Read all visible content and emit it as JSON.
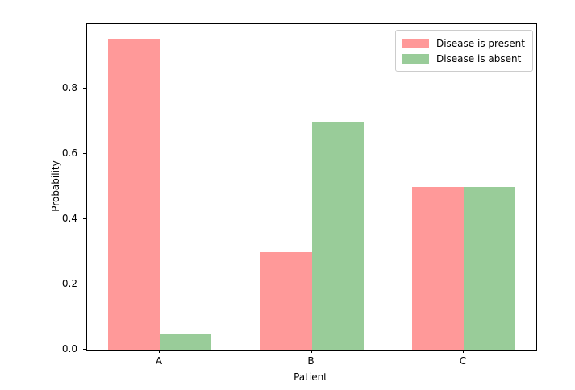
{
  "chart_data": {
    "type": "bar",
    "title": "",
    "xlabel": "Patient",
    "ylabel": "Probability",
    "categories": [
      "A",
      "B",
      "C"
    ],
    "series": [
      {
        "name": "Disease is present",
        "color": "#ff9999",
        "values": [
          0.95,
          0.3,
          0.5
        ]
      },
      {
        "name": "Disease is absent",
        "color": "#99cc99",
        "values": [
          0.05,
          0.7,
          0.5
        ]
      }
    ],
    "ylim": [
      0,
      0.9975
    ],
    "ytick_labels": [
      "0.0",
      "0.2",
      "0.4",
      "0.6",
      "0.8"
    ],
    "ytick_values": [
      0.0,
      0.2,
      0.4,
      0.6,
      0.8
    ],
    "legend_position": "upper right",
    "grid": false,
    "background": "#ffffff",
    "spine_color": "#000000"
  }
}
